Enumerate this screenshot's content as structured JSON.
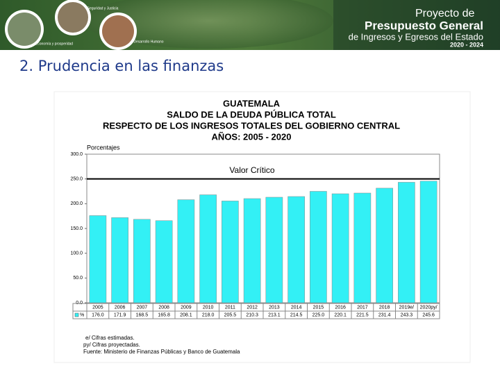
{
  "header": {
    "project_lines": [
      "Proyecto de",
      "Presupuesto General",
      "de Ingresos y Egresos del Estado",
      "2020 - 2024"
    ],
    "icons": [
      "Seguridad y Justicia",
      "Economía y prosperidad",
      "Desarrollo Humano"
    ]
  },
  "slide_title": "2. Prudencia en las finanzas",
  "chart_data": {
    "type": "bar",
    "title_lines": [
      "GUATEMALA",
      "SALDO DE LA DEUDA PÚBLICA TOTAL",
      "RESPECTO DE LOS INGRESOS TOTALES DEL GOBIERNO CENTRAL",
      "AÑOS: 2005 - 2020"
    ],
    "y_label": "Porcentajes",
    "categories": [
      "2005",
      "2006",
      "2007",
      "2008",
      "2009",
      "2010",
      "2011",
      "2012",
      "2013",
      "2014",
      "2015",
      "2016",
      "2017",
      "2018",
      "2019e/",
      "2020py/"
    ],
    "series": [
      {
        "name": "%",
        "color": "#33f0f5",
        "values": [
          176.0,
          171.9,
          168.5,
          165.8,
          208.1,
          218.0,
          205.5,
          210.3,
          213.1,
          214.5,
          225.0,
          220.1,
          221.5,
          231.4,
          243.3,
          245.6
        ],
        "value_labels": [
          "176.0",
          "171.9",
          "168.5",
          "165.8",
          "208.1",
          "218.0",
          "205.5",
          "210.3",
          "213.1",
          "214.5",
          "225.0",
          "220.1",
          "221.5",
          "231.4",
          "243.3",
          "245.6"
        ]
      }
    ],
    "ylim": [
      0,
      300
    ],
    "yticks": [
      {
        "value": 0,
        "label": "0.0"
      },
      {
        "value": 50,
        "label": "50.0"
      },
      {
        "value": 100,
        "label": "100.0"
      },
      {
        "value": 150,
        "label": "150.0"
      },
      {
        "value": 200,
        "label": "200.0"
      },
      {
        "value": 250,
        "label": "250.0"
      },
      {
        "value": 300,
        "label": "300.0"
      }
    ],
    "reference_line": {
      "value": 250,
      "label": "Valor Crítico"
    },
    "notes": [
      "e/ Cifras estimadas.",
      "py/ Cifras proyectadas.",
      "Fuente: Ministerio de Finanzas Públicas y Banco de Guatemala"
    ]
  }
}
